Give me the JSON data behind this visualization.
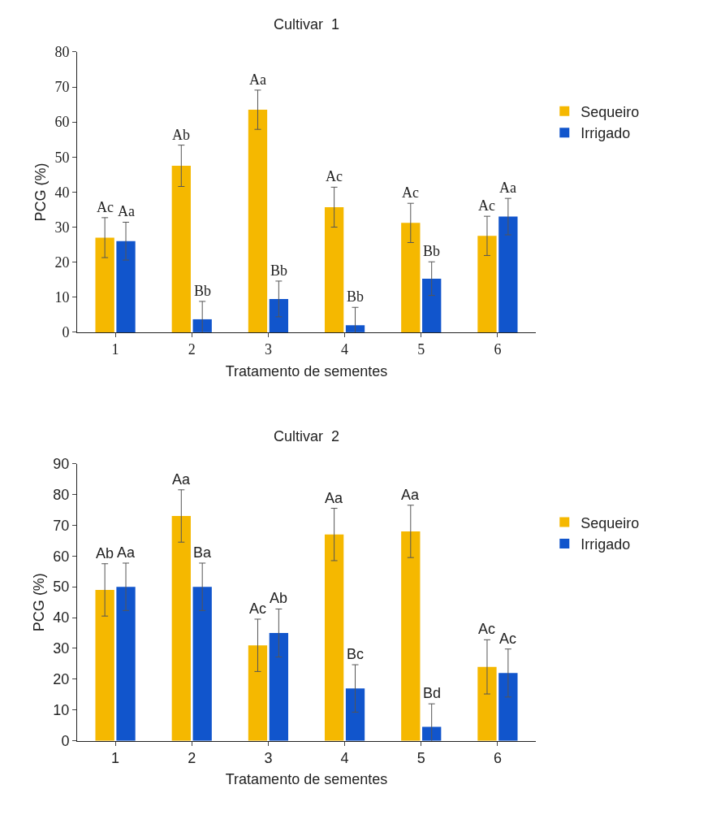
{
  "chart_data": [
    {
      "type": "bar",
      "title": "Cultivar  1",
      "xlabel": "Tratamento de sementes",
      "ylabel": "PCG (%)",
      "categories": [
        "1",
        "2",
        "3",
        "4",
        "5",
        "6"
      ],
      "ylim": [
        0,
        80
      ],
      "yticks": [
        0,
        10,
        20,
        30,
        40,
        50,
        60,
        70,
        80
      ],
      "legend": "right",
      "series": [
        {
          "name": "Sequeiro",
          "color": "#f5b800",
          "values": [
            27,
            47.5,
            63.5,
            35.7,
            31.2,
            27.5
          ],
          "errors": [
            5.7,
            5.9,
            5.6,
            5.7,
            5.6,
            5.6
          ],
          "value_labels": [
            "Ac",
            "Ab",
            "Aa",
            "Ac",
            "Ac",
            "Ac"
          ]
        },
        {
          "name": "Irrigado",
          "color": "#1155cc",
          "values": [
            26,
            3.7,
            9.5,
            2,
            15.3,
            33
          ],
          "errors": [
            5.4,
            5.1,
            5.1,
            5.1,
            4.8,
            5.2
          ],
          "value_labels": [
            "Aa",
            "Bb",
            "Bb",
            "Bb",
            "Bb",
            "Aa"
          ]
        }
      ]
    },
    {
      "type": "bar",
      "title": "Cultivar  2",
      "xlabel": "Tratamento de sementes",
      "ylabel": "PCG (%)",
      "categories": [
        "1",
        "2",
        "3",
        "4",
        "5",
        "6"
      ],
      "ylim": [
        0,
        90
      ],
      "yticks": [
        0,
        10,
        20,
        30,
        40,
        50,
        60,
        70,
        80,
        90
      ],
      "legend": "right",
      "series": [
        {
          "name": "Sequeiro",
          "color": "#f5b800",
          "values": [
            49,
            73,
            31,
            67,
            68,
            24
          ],
          "errors": [
            8.5,
            8.5,
            8.5,
            8.5,
            8.5,
            8.8
          ],
          "value_labels": [
            "Ab",
            "Aa",
            "Ac",
            "Aa",
            "Aa",
            "Ac"
          ]
        },
        {
          "name": "Irrigado",
          "color": "#1155cc",
          "values": [
            50,
            50,
            35,
            17,
            4.5,
            22
          ],
          "errors": [
            7.7,
            7.7,
            7.8,
            7.7,
            7.5,
            7.8
          ],
          "value_labels": [
            "Aa",
            "Ba",
            "Ab",
            "Bc",
            "Bd",
            "Ac"
          ]
        }
      ]
    }
  ]
}
